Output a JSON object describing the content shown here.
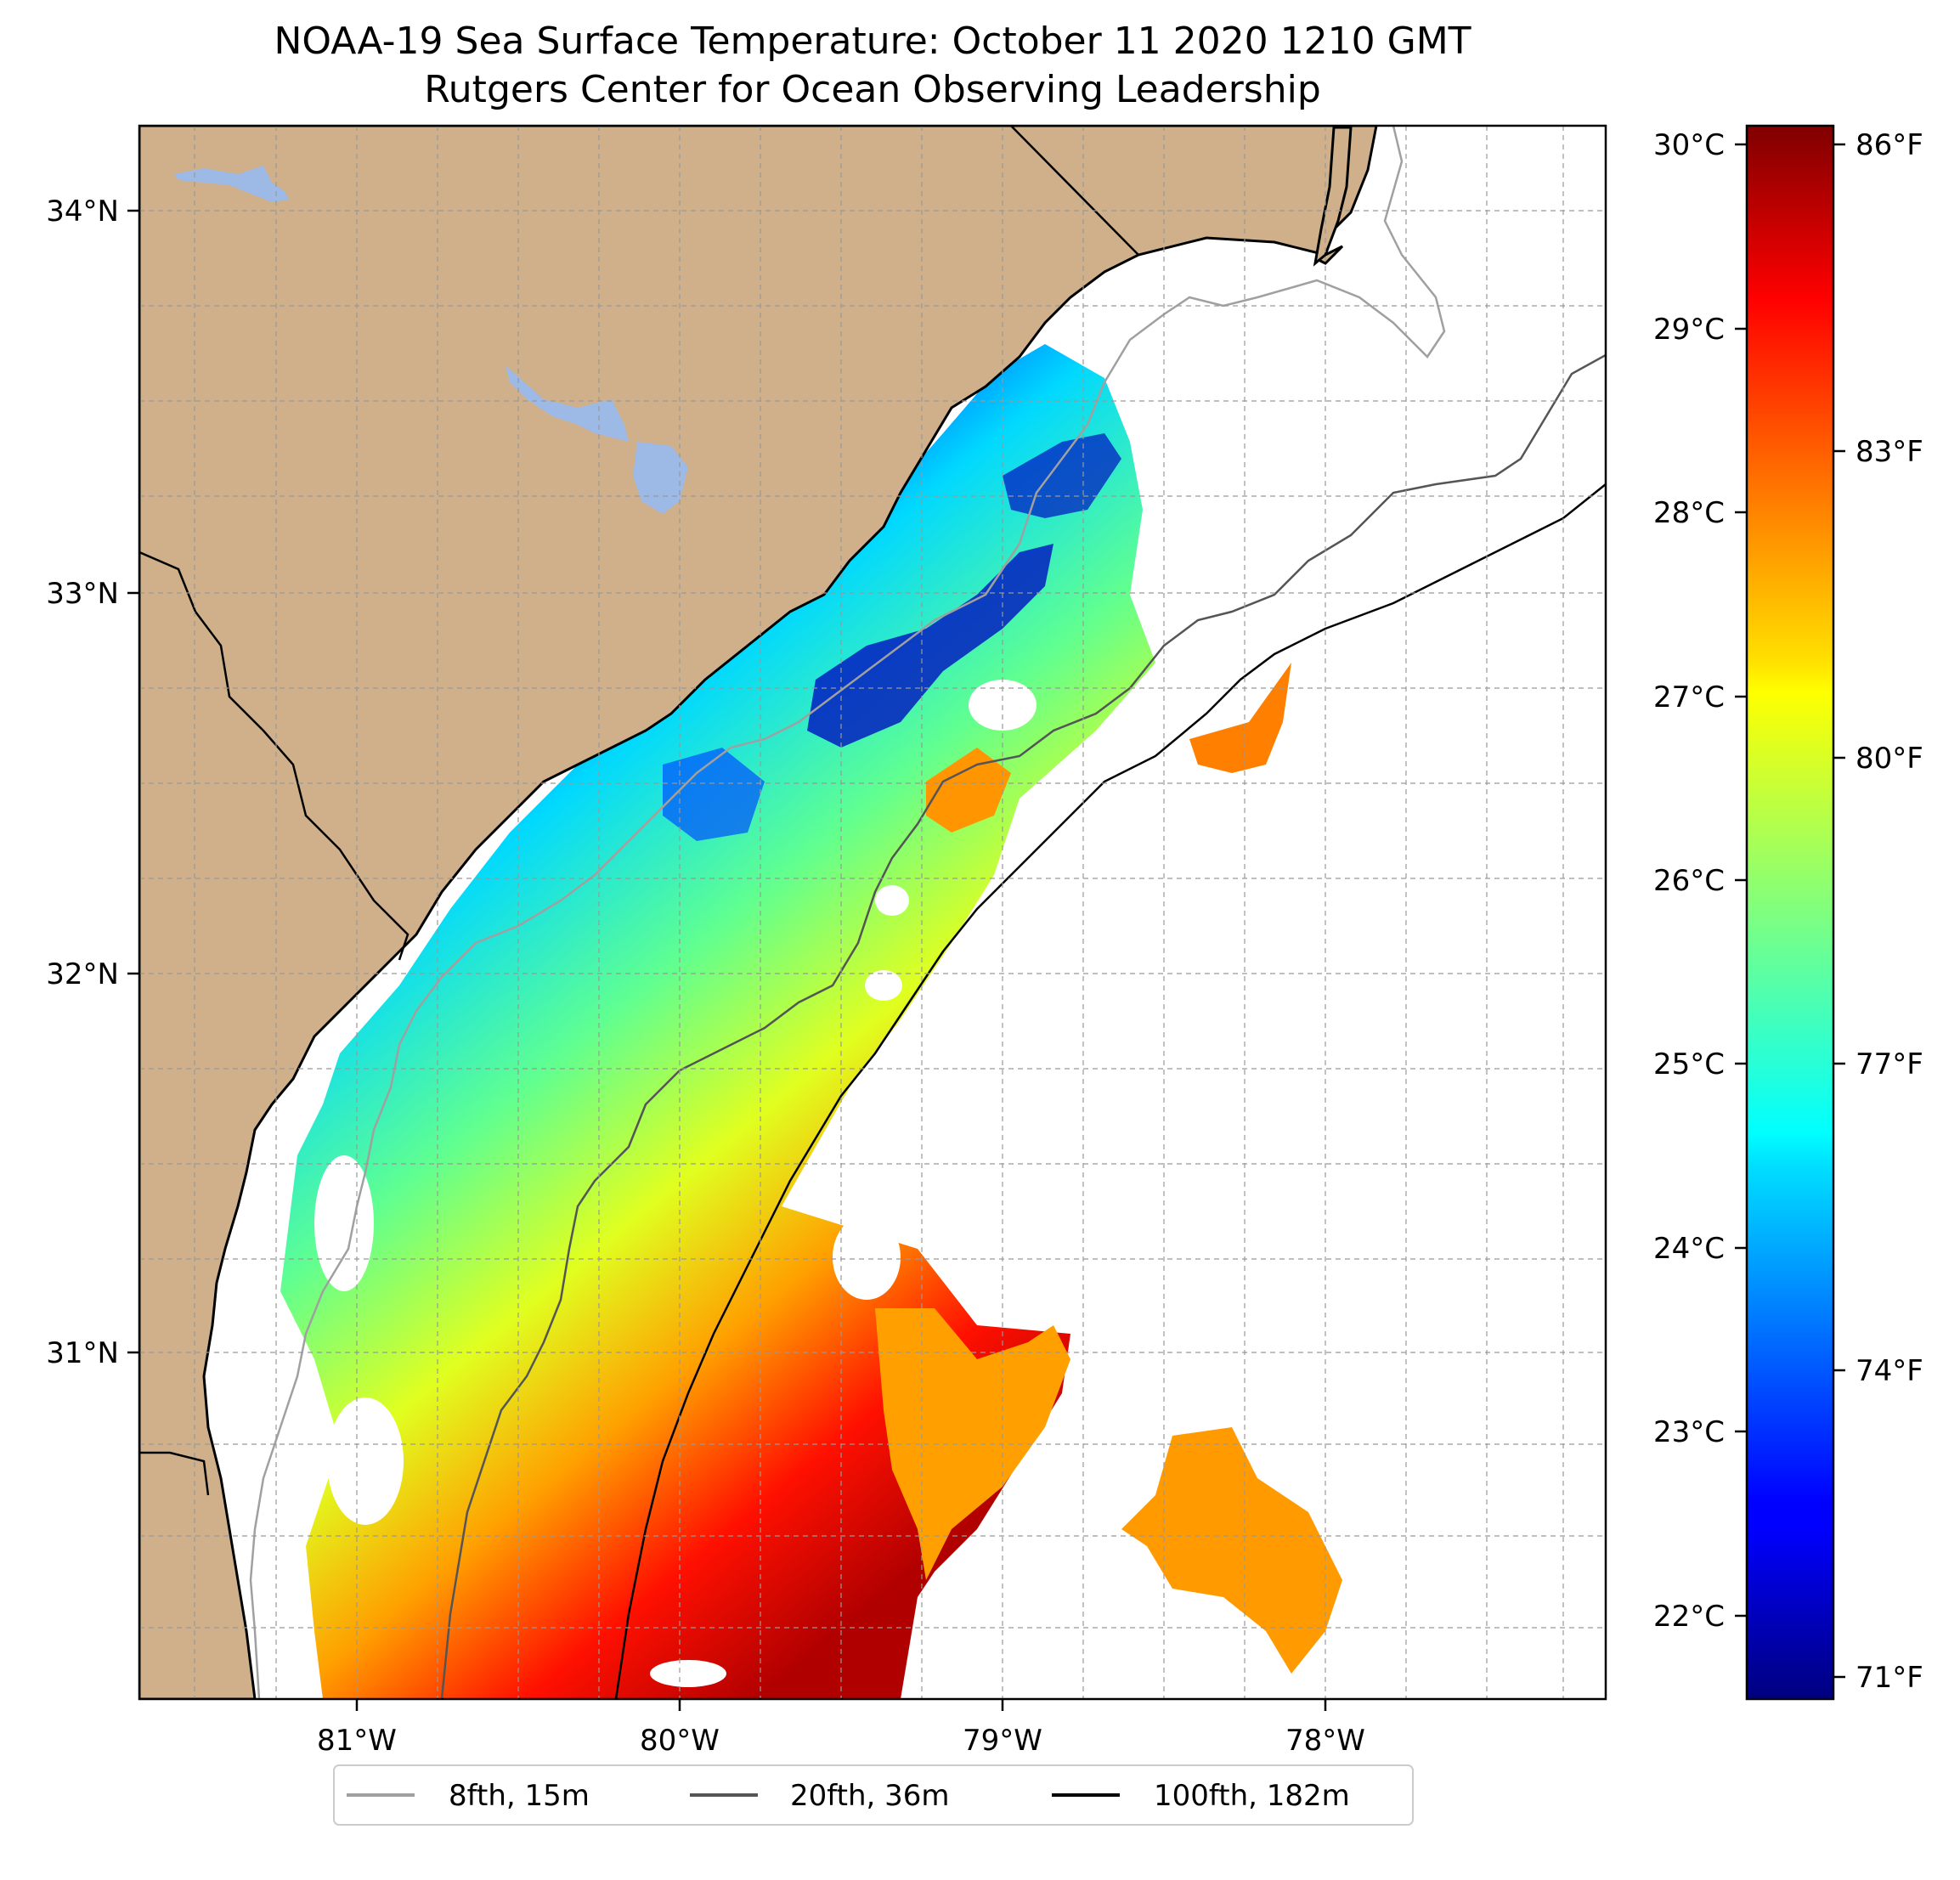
{
  "title_line1": "NOAA-19 Sea Surface Temperature: October 11 2020 1210 GMT",
  "title_line2": "Rutgers Center for Ocean Observing Leadership",
  "map": {
    "lon_ticks": [
      "81°W",
      "80°W",
      "79°W",
      "78°W"
    ],
    "lat_ticks": [
      "34°N",
      "33°N",
      "32°N",
      "31°N"
    ],
    "grid": true,
    "colors": {
      "land": "#cfb08a",
      "lakes": "#9db9e6",
      "ocean_nodata": "#ffffff",
      "coastline": "#000000",
      "isobath_8fth": "#a0a0a0",
      "isobath_20fth": "#555555",
      "isobath_100fth": "#000000"
    }
  },
  "colorbar": {
    "celsius_ticks": [
      "30°C",
      "29°C",
      "28°C",
      "27°C",
      "26°C",
      "25°C",
      "24°C",
      "23°C",
      "22°C"
    ],
    "fahrenheit_ticks": [
      "86°F",
      "83°F",
      "80°F",
      "77°F",
      "74°F",
      "71°F"
    ],
    "colormap": "jet"
  },
  "legend": {
    "items": [
      {
        "label": "8fth, 15m",
        "color": "#a0a0a0"
      },
      {
        "label": "20fth, 36m",
        "color": "#555555"
      },
      {
        "label": "100fth, 182m",
        "color": "#000000"
      }
    ]
  }
}
